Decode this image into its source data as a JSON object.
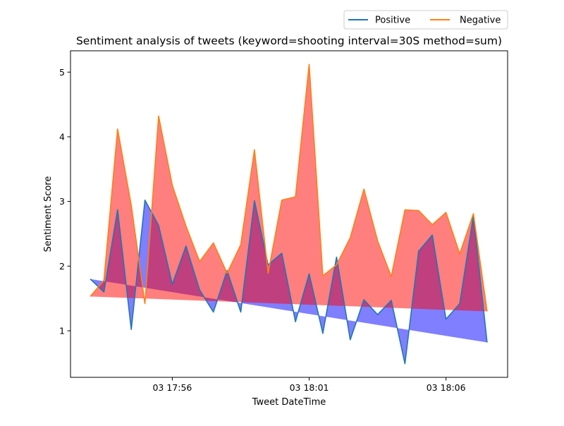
{
  "chart_data": {
    "type": "area",
    "title": "Sentiment analysis of tweets (keyword=shooting interval=30S method=sum)",
    "xlabel": "Tweet DateTime",
    "ylabel": "Sentiment Score",
    "x_unit": "minutes after 03 17:56",
    "xlim": [
      -3.72,
      12.25
    ],
    "ylim": [
      0.28,
      5.33
    ],
    "x_ticks": [
      {
        "value": 0,
        "label": "03 17:56"
      },
      {
        "value": 5,
        "label": "03 18:01"
      },
      {
        "value": 10,
        "label": "03 18:06"
      }
    ],
    "y_ticks": [
      1,
      2,
      3,
      4,
      5
    ],
    "legend_position": "top-right (outside, above plot)",
    "grid": false,
    "x": [
      -3,
      -2.5,
      -2,
      -1.5,
      -1,
      -0.5,
      0,
      0.5,
      1,
      1.5,
      2,
      2.5,
      3,
      3.5,
      4,
      4.5,
      5,
      5.5,
      6,
      6.5,
      7,
      7.5,
      8,
      8.5,
      9,
      9.5,
      10,
      10.5,
      11,
      11.5
    ],
    "series": [
      {
        "name": "Positive",
        "color": "#1f77b4",
        "fill_color": "#0000ff",
        "values": [
          1.8,
          1.6,
          2.87,
          1.02,
          3.02,
          2.63,
          1.72,
          2.31,
          1.63,
          1.29,
          1.93,
          1.29,
          3.01,
          2.02,
          2.2,
          1.14,
          1.88,
          0.96,
          2.14,
          0.86,
          1.48,
          1.25,
          1.47,
          0.49,
          2.23,
          2.48,
          1.18,
          1.42,
          2.78,
          0.82
        ]
      },
      {
        "name": "Negative",
        "color": "#ff7f0e",
        "fill_color": "#ff0000",
        "values": [
          1.53,
          1.78,
          4.12,
          2.94,
          1.42,
          4.32,
          3.25,
          2.62,
          2.07,
          2.36,
          1.89,
          2.33,
          3.8,
          1.89,
          3.02,
          3.07,
          5.12,
          1.85,
          2.02,
          2.44,
          3.19,
          2.39,
          1.84,
          2.87,
          2.86,
          2.64,
          2.83,
          2.19,
          2.81,
          1.3
        ]
      }
    ]
  },
  "legend": {
    "items": [
      {
        "label": "Positive",
        "color": "#1f77b4"
      },
      {
        "label": "Negative",
        "color": "#ff7f0e"
      }
    ]
  }
}
